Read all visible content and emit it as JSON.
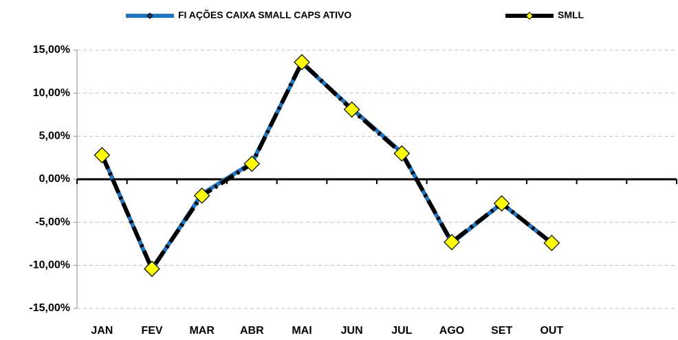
{
  "chart_data": {
    "type": "line",
    "categories": [
      "JAN",
      "FEV",
      "MAR",
      "ABR",
      "MAI",
      "JUN",
      "JUL",
      "AGO",
      "SET",
      "OUT",
      null,
      null
    ],
    "series": [
      {
        "name": "FI AÇÕES CAIXA SMALL CAPS ATIVO",
        "color": "#1f77c4",
        "values": [
          2.9,
          -10.5,
          -1.7,
          1.9,
          13.5,
          8.2,
          3.1,
          -7.4,
          -2.8,
          -7.4,
          null,
          null
        ]
      },
      {
        "name": "SMLL",
        "color": "#000000",
        "marker_color": "#ffff00",
        "values": [
          2.8,
          -10.4,
          -1.9,
          1.8,
          13.6,
          8.1,
          3.0,
          -7.3,
          -2.8,
          -7.4,
          null,
          null
        ]
      }
    ],
    "ylim": [
      -15,
      15
    ],
    "yticks": [
      {
        "value": -15,
        "label": "-15,00%"
      },
      {
        "value": -10,
        "label": "-10,00%"
      },
      {
        "value": -5,
        "label": "-5,00%"
      },
      {
        "value": 0,
        "label": "0,00%"
      },
      {
        "value": 5,
        "label": "5,00%"
      },
      {
        "value": 10,
        "label": "10,00%"
      },
      {
        "value": 15,
        "label": "15,00%"
      }
    ],
    "grid": true,
    "legend": "top"
  }
}
